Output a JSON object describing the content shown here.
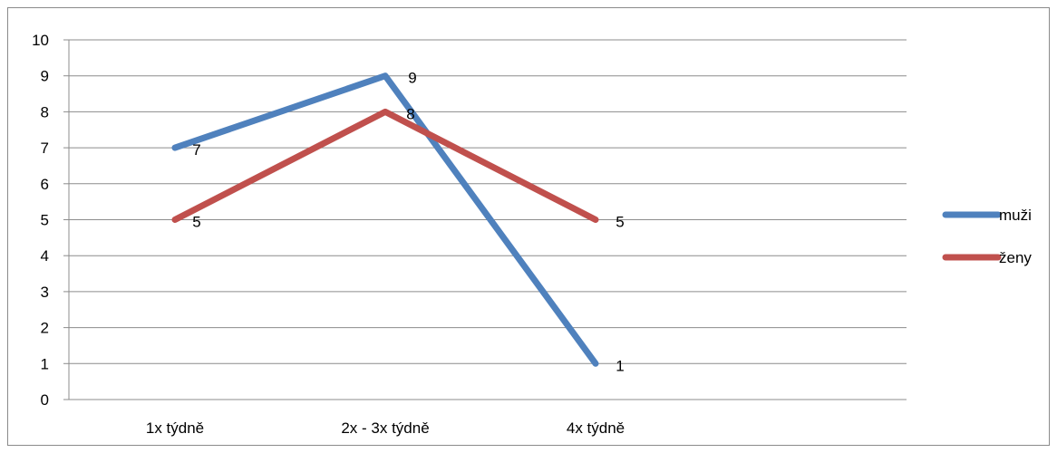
{
  "chart_data": {
    "type": "line",
    "categories": [
      "1x týdně",
      "2x - 3x týdně",
      "4x týdně"
    ],
    "series": [
      {
        "name": "muži",
        "values": [
          7,
          9,
          1
        ],
        "color": "#4f81bd"
      },
      {
        "name": "ženy",
        "values": [
          5,
          8,
          5
        ],
        "color": "#c0504d"
      }
    ],
    "ylim": [
      0,
      10
    ],
    "yticks": [
      0,
      1,
      2,
      3,
      4,
      5,
      6,
      7,
      8,
      9,
      10
    ],
    "grid": true,
    "legend": "right",
    "data_labels": true
  }
}
